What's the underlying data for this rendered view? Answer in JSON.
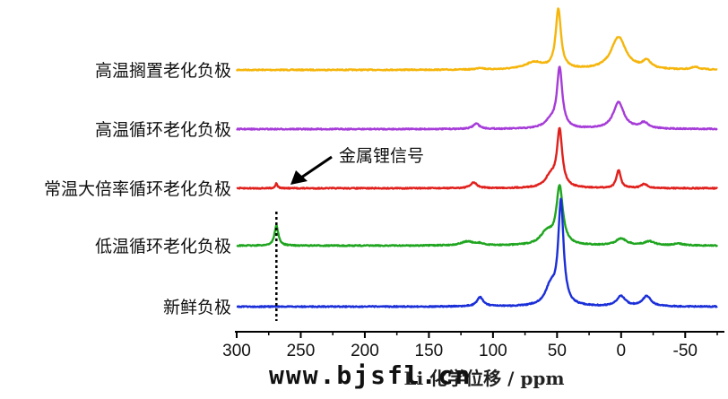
{
  "chart_data": {
    "type": "line",
    "xlabel": "Li 化学位移 / ppm",
    "xlim": [
      300,
      -75
    ],
    "x_reversed": true,
    "xticks": [
      "300",
      "250",
      "200",
      "150",
      "100",
      "50",
      "0",
      "-50"
    ],
    "xtick_values": [
      300,
      250,
      200,
      150,
      100,
      50,
      0,
      -50
    ],
    "annotation": {
      "text": "金属锂信号",
      "x": 269
    },
    "legend": "none",
    "grid": false,
    "series": [
      {
        "name": "高温搁置老化负极",
        "color": "#f5b50b",
        "peaks": [
          [
            49,
            1.0,
            2.5
          ],
          [
            68,
            0.12,
            9
          ],
          [
            110,
            0.03,
            3
          ],
          [
            2,
            0.55,
            7
          ],
          [
            -20,
            0.13,
            4
          ],
          [
            -58,
            0.04,
            4
          ]
        ],
        "values_note": "peak list: [shift_ppm, relative_height, width_ppm]"
      },
      {
        "name": "高温循环老化负极",
        "color": "#a63cd8",
        "peaks": [
          [
            48,
            1.0,
            2.5
          ],
          [
            55,
            0.12,
            6
          ],
          [
            113,
            0.09,
            3
          ],
          [
            2,
            0.45,
            5
          ],
          [
            -18,
            0.1,
            4
          ]
        ]
      },
      {
        "name": "常温大倍率循环老化负极",
        "color": "#e0201c",
        "peaks": [
          [
            269,
            0.09,
            1
          ],
          [
            115,
            0.1,
            3
          ],
          [
            48,
            1.0,
            2.5
          ],
          [
            55,
            0.2,
            5
          ],
          [
            2,
            0.32,
            2
          ],
          [
            -18,
            0.07,
            3
          ]
        ]
      },
      {
        "name": "低温循环老化负极",
        "color": "#1fa51f",
        "peaks": [
          [
            269,
            0.35,
            1.8
          ],
          [
            120,
            0.07,
            6
          ],
          [
            110,
            0.03,
            3
          ],
          [
            48,
            1.0,
            3
          ],
          [
            58,
            0.22,
            6
          ],
          [
            0,
            0.12,
            5
          ],
          [
            -22,
            0.07,
            5
          ],
          [
            -45,
            0.03,
            5
          ]
        ]
      },
      {
        "name": "新鲜负极",
        "color": "#1b2fd8",
        "peaks": [
          [
            47,
            1.0,
            2.5
          ],
          [
            55,
            0.18,
            5
          ],
          [
            110,
            0.09,
            3
          ],
          [
            0,
            0.1,
            4
          ],
          [
            -20,
            0.1,
            4
          ]
        ]
      }
    ]
  },
  "watermark": "www.bjsfl.cn"
}
